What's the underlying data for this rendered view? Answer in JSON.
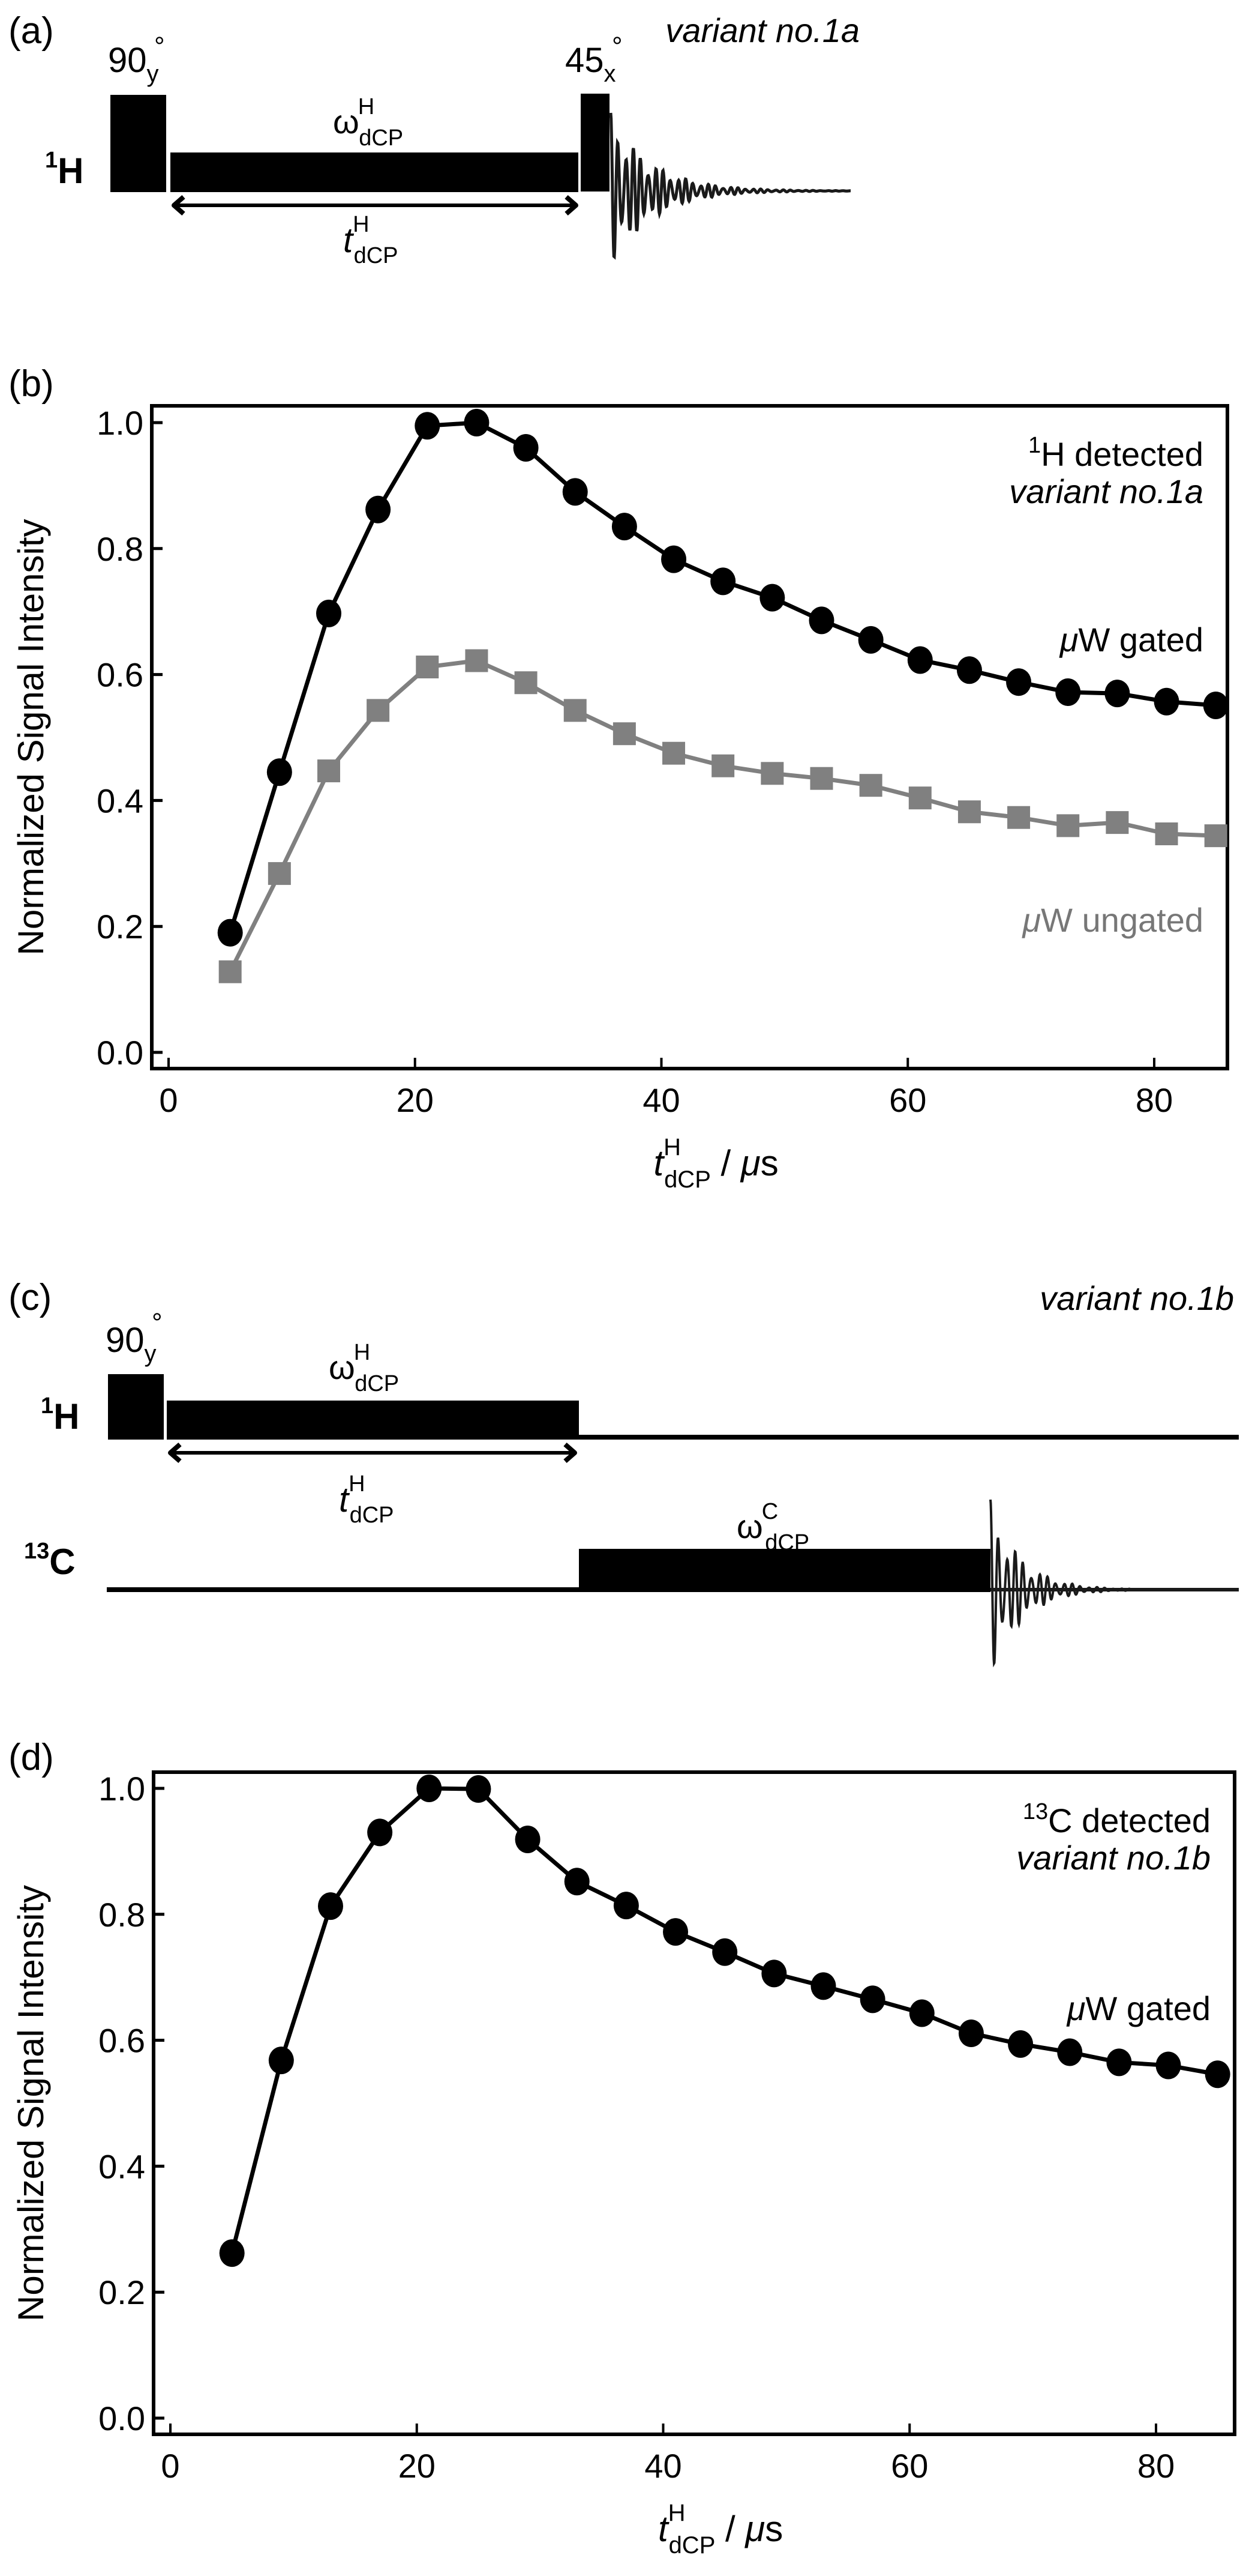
{
  "panel_a": {
    "label": "(a)",
    "variant": "variant no.1a",
    "channel": {
      "sup": "1",
      "base": "H"
    },
    "pulse1": {
      "angle": "90",
      "phase": "y",
      "deg": "°"
    },
    "pulse2": {
      "angle": "45",
      "phase": "x",
      "deg": "°"
    },
    "cp_label": {
      "base": "ω",
      "sup": "H",
      "sub": "dCP"
    },
    "time_label": {
      "base": "t",
      "sup": "H",
      "sub": "dCP"
    }
  },
  "panel_c": {
    "label": "(c)",
    "variant": "variant no.1b",
    "channel_h": {
      "sup": "1",
      "base": "H"
    },
    "channel_c": {
      "sup": "13",
      "base": "C"
    },
    "pulse1": {
      "angle": "90",
      "phase": "y",
      "deg": "°"
    },
    "cp_h_label": {
      "base": "ω",
      "sup": "H",
      "sub": "dCP"
    },
    "cp_c_label": {
      "base": "ω",
      "sup": "C",
      "sub": "dCP"
    },
    "time_label": {
      "base": "t",
      "sup": "H",
      "sub": "dCP"
    }
  },
  "chart_data": [
    {
      "panel": "(b)",
      "type": "line",
      "title": "",
      "annotation": {
        "sup": "1",
        "text": "H detected",
        "variant": "variant no.1a"
      },
      "xlabel": {
        "base": "t",
        "sup": "H",
        "sub": "dCP",
        "unit": " / μs"
      },
      "ylabel": "Normalized Signal Intensity",
      "xlim": [
        -1,
        87
      ],
      "ylim": [
        -0.02,
        1.03
      ],
      "xticks": [
        0,
        20,
        40,
        60,
        80
      ],
      "yticks": [
        "0.0",
        "0.2",
        "0.4",
        "0.6",
        "0.8",
        "1.0"
      ],
      "grid": false,
      "x": [
        5,
        9,
        13,
        17,
        21,
        25,
        29,
        33,
        37,
        41,
        45,
        49,
        53,
        57,
        61,
        65,
        69,
        73,
        77,
        81,
        85
      ],
      "series": [
        {
          "name": "μW gated",
          "label_mu": "μ",
          "label_rest": "W gated",
          "marker": "circle",
          "color": "#000000",
          "values": [
            0.19,
            0.445,
            0.697,
            0.862,
            0.995,
            1.0,
            0.96,
            0.89,
            0.835,
            0.783,
            0.748,
            0.722,
            0.686,
            0.655,
            0.623,
            0.607,
            0.588,
            0.572,
            0.57,
            0.557,
            0.551
          ]
        },
        {
          "name": "μW ungated",
          "label_mu": "μ",
          "label_rest": "W ungated",
          "marker": "square",
          "color": "#808080",
          "values": [
            0.128,
            0.284,
            0.447,
            0.543,
            0.612,
            0.622,
            0.587,
            0.543,
            0.506,
            0.475,
            0.455,
            0.443,
            0.435,
            0.424,
            0.404,
            0.382,
            0.373,
            0.36,
            0.365,
            0.347,
            0.344
          ]
        }
      ]
    },
    {
      "panel": "(d)",
      "type": "line",
      "title": "",
      "annotation": {
        "sup": "13",
        "text": "C detected",
        "variant": "variant no.1b"
      },
      "xlabel": {
        "base": "t",
        "sup": "H",
        "sub": "dCP",
        "unit": " / μs"
      },
      "ylabel": "Normalized Signal Intensity",
      "xlim": [
        -1,
        87
      ],
      "ylim": [
        -0.02,
        1.03
      ],
      "xticks": [
        0,
        20,
        40,
        60,
        80
      ],
      "yticks": [
        "0.0",
        "0.2",
        "0.4",
        "0.6",
        "0.8",
        "1.0"
      ],
      "grid": false,
      "x": [
        5,
        9,
        13,
        17,
        21,
        25,
        29,
        33,
        37,
        41,
        45,
        49,
        53,
        57,
        61,
        65,
        69,
        73,
        77,
        81,
        85
      ],
      "series": [
        {
          "name": "μW gated",
          "label_mu": "μ",
          "label_rest": "W gated",
          "marker": "circle",
          "color": "#000000",
          "values": [
            0.262,
            0.568,
            0.813,
            0.93,
            1.0,
            0.999,
            0.919,
            0.852,
            0.814,
            0.772,
            0.74,
            0.706,
            0.686,
            0.665,
            0.643,
            0.611,
            0.594,
            0.581,
            0.565,
            0.56,
            0.546
          ]
        }
      ]
    }
  ]
}
